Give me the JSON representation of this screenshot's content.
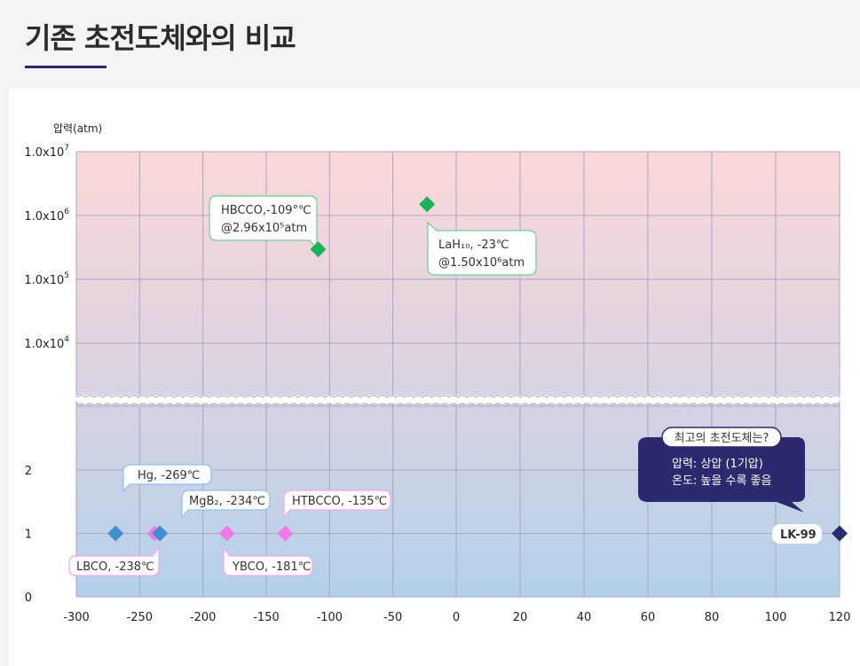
{
  "page": {
    "title": "기존 초전도체와의 비교"
  },
  "chart_data": {
    "type": "scatter",
    "ylabel": "압력(atm)",
    "xlim": [
      -300,
      120
    ],
    "x_ticks": [
      "-300",
      "-250",
      "-200",
      "-150",
      "-100",
      "-50",
      "0",
      "20",
      "40",
      "60",
      "80",
      "100",
      "120"
    ],
    "y_ticks_low": [
      "0",
      "1",
      "2"
    ],
    "y_ticks_high": [
      {
        "base": "1.0x10",
        "exp": "4"
      },
      {
        "base": "1.0x10",
        "exp": "5"
      },
      {
        "base": "1.0x10",
        "exp": "6"
      },
      {
        "base": "1.0x10",
        "exp": "7"
      }
    ],
    "points": [
      {
        "x": -269,
        "y": 1,
        "color": "#3f8fd2",
        "label": "Hg, -269℃"
      },
      {
        "x": -238,
        "y": 1,
        "color": "#f07ae8",
        "label": "LBCO, -238℃"
      },
      {
        "x": -234,
        "y": 1,
        "color": "#3f8fd2",
        "label": "MgB₂, -234℃"
      },
      {
        "x": -181,
        "y": 1,
        "color": "#f07ae8",
        "label": "YBCO, -181℃"
      },
      {
        "x": -135,
        "y": 1,
        "color": "#f07ae8",
        "label": "HTBCCO, -135℃"
      },
      {
        "x": -109,
        "y": 296000,
        "color": "#19b35a",
        "label_line1": "HBCCO,-109°℃",
        "label_line2": "@2.96x10⁵atm"
      },
      {
        "x": -23,
        "y": 1500000,
        "color": "#19b35a",
        "label_line1": "LaH₁₀, -23℃",
        "label_line2": "@1.50x10⁶atm"
      },
      {
        "x": 120,
        "y": 1,
        "color": "#2c2a6e",
        "label": "LK-99"
      }
    ],
    "callout": {
      "title": "최고의 초전도체는?",
      "line1": "압력: 상압 (1기압)",
      "line2": "온도: 높을 수록 좋음"
    }
  }
}
